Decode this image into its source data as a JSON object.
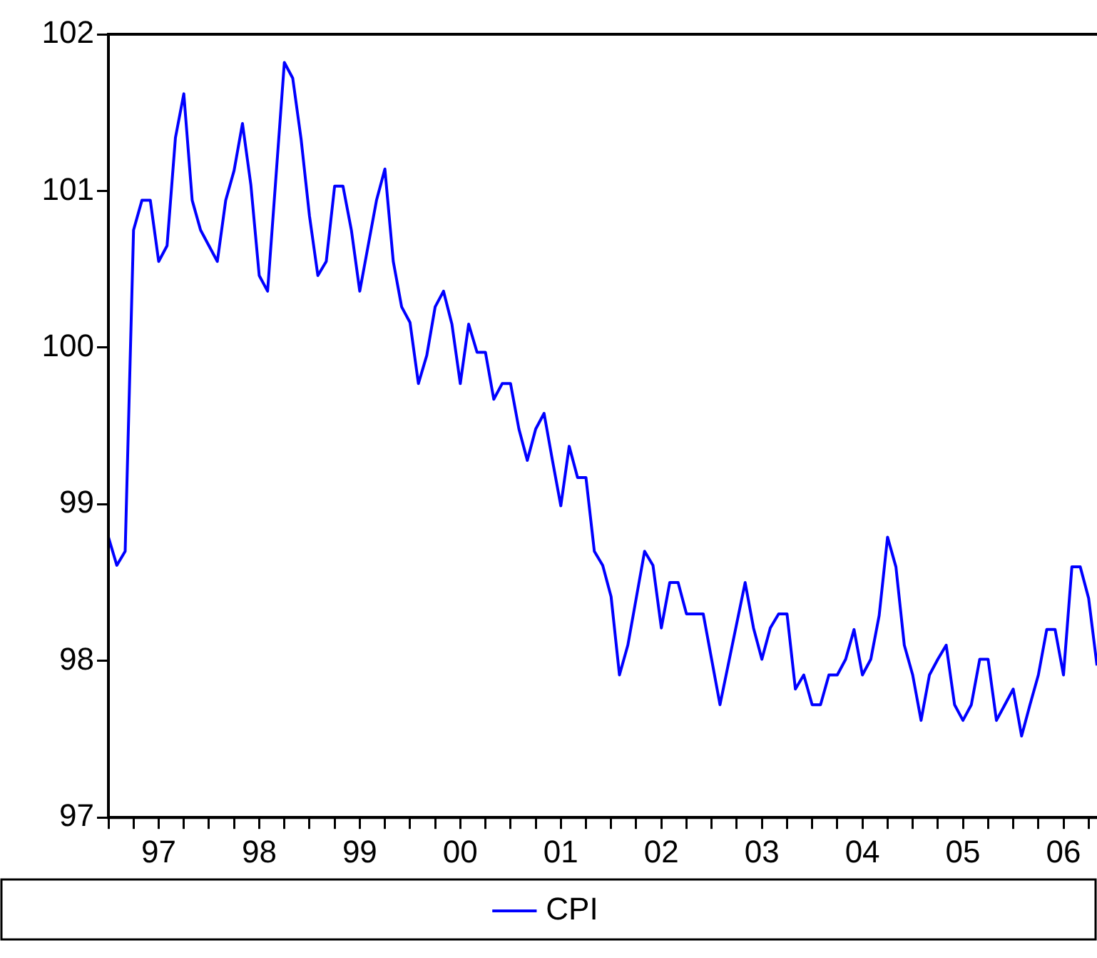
{
  "chart_data": {
    "type": "line",
    "legend": "bottom",
    "marker": "none",
    "line_style": "solid",
    "grid": false,
    "xlim": [
      "1997-01",
      "2006-11"
    ],
    "ylim": [
      97,
      102
    ],
    "yticks": [
      97,
      98,
      99,
      100,
      101,
      102
    ],
    "xticks": [
      {
        "value": "1997",
        "label": null
      },
      {
        "value": "1997-04",
        "label": null
      },
      {
        "value": "1997-07",
        "label": "97"
      },
      {
        "value": "1997-10",
        "label": null
      },
      {
        "value": "1998",
        "label": null
      },
      {
        "value": "1998-04",
        "label": null
      },
      {
        "value": "1998-07",
        "label": "98"
      },
      {
        "value": "1998-10",
        "label": null
      },
      {
        "value": "1999",
        "label": null
      },
      {
        "value": "1999-04",
        "label": null
      },
      {
        "value": "1999-07",
        "label": "99"
      },
      {
        "value": "1999-10",
        "label": null
      },
      {
        "value": "2000",
        "label": null
      },
      {
        "value": "2000-04",
        "label": null
      },
      {
        "value": "2000-07",
        "label": "00"
      },
      {
        "value": "2000-10",
        "label": null
      },
      {
        "value": "2001",
        "label": null
      },
      {
        "value": "2001-04",
        "label": null
      },
      {
        "value": "2001-07",
        "label": "01"
      },
      {
        "value": "2001-10",
        "label": null
      },
      {
        "value": "2002",
        "label": null
      },
      {
        "value": "2002-04",
        "label": null
      },
      {
        "value": "2002-07",
        "label": "02"
      },
      {
        "value": "2002-10",
        "label": null
      },
      {
        "value": "2003",
        "label": null
      },
      {
        "value": "2003-04",
        "label": null
      },
      {
        "value": "2003-07",
        "label": "03"
      },
      {
        "value": "2003-10",
        "label": null
      },
      {
        "value": "2004",
        "label": null
      },
      {
        "value": "2004-04",
        "label": null
      },
      {
        "value": "2004-07",
        "label": "04"
      },
      {
        "value": "2004-10",
        "label": null
      },
      {
        "value": "2005",
        "label": null
      },
      {
        "value": "2005-04",
        "label": null
      },
      {
        "value": "2005-07",
        "label": "05"
      },
      {
        "value": "2005-10",
        "label": null
      },
      {
        "value": "2006",
        "label": null
      },
      {
        "value": "2006-04",
        "label": null
      },
      {
        "value": "2006-07",
        "label": "06"
      },
      {
        "value": "2006-10",
        "label": null
      }
    ],
    "x": [
      "1997-01",
      "1997-02",
      "1997-03",
      "1997-04",
      "1997-05",
      "1997-06",
      "1997-07",
      "1997-08",
      "1997-09",
      "1997-10",
      "1997-11",
      "1997-12",
      "1998-01",
      "1998-02",
      "1998-03",
      "1998-04",
      "1998-05",
      "1998-06",
      "1998-07",
      "1998-08",
      "1998-09",
      "1998-10",
      "1998-11",
      "1998-12",
      "1999-01",
      "1999-02",
      "1999-03",
      "1999-04",
      "1999-05",
      "1999-06",
      "1999-07",
      "1999-08",
      "1999-09",
      "1999-10",
      "1999-11",
      "1999-12",
      "2000-01",
      "2000-02",
      "2000-03",
      "2000-04",
      "2000-05",
      "2000-06",
      "2000-07",
      "2000-08",
      "2000-09",
      "2000-10",
      "2000-11",
      "2000-12",
      "2001-01",
      "2001-02",
      "2001-03",
      "2001-04",
      "2001-05",
      "2001-06",
      "2001-07",
      "2001-08",
      "2001-09",
      "2001-10",
      "2001-11",
      "2001-12",
      "2002-01",
      "2002-02",
      "2002-03",
      "2002-04",
      "2002-05",
      "2002-06",
      "2002-07",
      "2002-08",
      "2002-09",
      "2002-10",
      "2002-11",
      "2002-12",
      "2003-01",
      "2003-02",
      "2003-03",
      "2003-04",
      "2003-05",
      "2003-06",
      "2003-07",
      "2003-08",
      "2003-09",
      "2003-10",
      "2003-11",
      "2003-12",
      "2004-01",
      "2004-02",
      "2004-03",
      "2004-04",
      "2004-05",
      "2004-06",
      "2004-07",
      "2004-08",
      "2004-09",
      "2004-10",
      "2004-11",
      "2004-12",
      "2005-01",
      "2005-02",
      "2005-03",
      "2005-04",
      "2005-05",
      "2005-06",
      "2005-07",
      "2005-08",
      "2005-09",
      "2005-10",
      "2005-11",
      "2005-12",
      "2006-01",
      "2006-02",
      "2006-03",
      "2006-04",
      "2006-05",
      "2006-06",
      "2006-07",
      "2006-08",
      "2006-09",
      "2006-10",
      "2006-11"
    ],
    "series": [
      {
        "name": "CPI",
        "color": "#0000ff",
        "values": [
          98.79,
          98.61,
          98.7,
          100.75,
          100.94,
          100.94,
          100.55,
          100.65,
          101.34,
          101.62,
          100.94,
          100.75,
          100.65,
          100.55,
          100.94,
          101.13,
          101.43,
          101.04,
          100.46,
          100.36,
          101.09,
          101.82,
          101.72,
          101.33,
          100.84,
          100.46,
          100.55,
          101.03,
          101.03,
          100.75,
          100.36,
          100.65,
          100.94,
          101.14,
          100.55,
          100.26,
          100.16,
          99.77,
          99.95,
          100.26,
          100.36,
          100.15,
          99.77,
          100.15,
          99.97,
          99.97,
          99.67,
          99.77,
          99.77,
          99.48,
          99.28,
          99.48,
          99.58,
          99.28,
          98.99,
          99.37,
          99.17,
          99.17,
          98.7,
          98.61,
          98.41,
          97.91,
          98.1,
          98.4,
          98.7,
          98.61,
          98.21,
          98.5,
          98.5,
          98.3,
          98.3,
          98.3,
          98.01,
          97.72,
          97.98,
          98.24,
          98.5,
          98.21,
          98.01,
          98.21,
          98.3,
          98.3,
          97.82,
          97.91,
          97.72,
          97.72,
          97.91,
          97.91,
          98.01,
          98.2,
          97.91,
          98.01,
          98.29,
          98.79,
          98.6,
          98.1,
          97.91,
          97.62,
          97.91,
          98.01,
          98.1,
          97.72,
          97.62,
          97.72,
          98.01,
          98.01,
          97.62,
          97.72,
          97.82,
          97.52,
          97.72,
          97.91,
          98.2,
          98.2,
          97.91,
          98.6,
          98.6,
          98.4,
          97.97
        ]
      }
    ]
  }
}
